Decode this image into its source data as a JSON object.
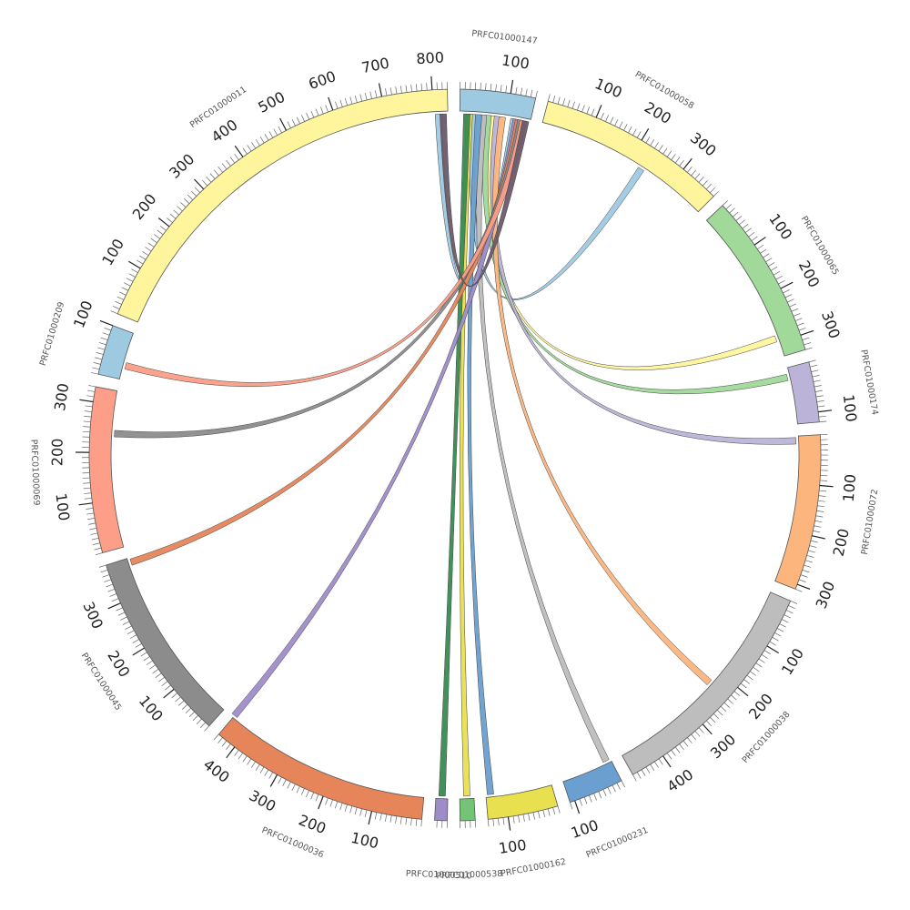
{
  "diagram": {
    "type": "circos",
    "scale": {
      "max_length": 830,
      "major_tick_step": 100,
      "minor_tick_step": 10
    },
    "segments": [
      {
        "id": "PRFC01000147",
        "label": "PRFC01000147",
        "length": 150,
        "color": "#9ecae1"
      },
      {
        "id": "PRFC01000058",
        "label": "PRFC01000058",
        "length": 380,
        "color": "#fff59d"
      },
      {
        "id": "PRFC01000065",
        "label": "PRFC01000065",
        "length": 330,
        "color": "#a1d99b"
      },
      {
        "id": "PRFC01000174",
        "label": "PRFC01000174",
        "length": 120,
        "color": "#bcb4d8"
      },
      {
        "id": "PRFC01000072",
        "label": "PRFC01000072",
        "length": 310,
        "color": "#fdb57e"
      },
      {
        "id": "PRFC01000038",
        "label": "PRFC01000038",
        "length": 470,
        "color": "#bdbdbd"
      },
      {
        "id": "PRFC01000231",
        "label": "PRFC01000231",
        "length": 110,
        "color": "#6a9fd0"
      },
      {
        "id": "PRFC01000162",
        "label": "PRFC01000162",
        "length": 140,
        "color": "#e8e04f"
      },
      {
        "id": "PRFC01000538",
        "label": "PRFC01000538",
        "length": 30,
        "color": "#74c476"
      },
      {
        "id": "PRFC01000510",
        "label": "PRFC01000510",
        "length": 25,
        "color": "#9e8cc8"
      },
      {
        "id": "PRFC01000036",
        "label": "PRFC01000036",
        "length": 440,
        "color": "#e6855a"
      },
      {
        "id": "PRFC01000045",
        "label": "PRFC01000045",
        "length": 380,
        "color": "#8c8c8c"
      },
      {
        "id": "PRFC01000069",
        "label": "PRFC01000069",
        "length": 330,
        "color": "#fc9e88"
      },
      {
        "id": "PRFC01000209",
        "label": "PRFC01000209",
        "length": 100,
        "color": "#9ecae1"
      },
      {
        "id": "PRFC01000011",
        "label": "PRFC01000011",
        "length": 830,
        "color": "#fff59d"
      }
    ],
    "links": [
      {
        "source": "PRFC01000147",
        "source_pos": 115,
        "target": "PRFC01000011",
        "target_pos": 810,
        "color": "#9ecae1"
      },
      {
        "source": "PRFC01000147",
        "source_pos": 30,
        "target": "PRFC01000058",
        "target_pos": 230,
        "color": "#9ecae1"
      },
      {
        "source": "PRFC01000147",
        "source_pos": 70,
        "target": "PRFC01000065",
        "target_pos": 290,
        "color": "#fff59d"
      },
      {
        "source": "PRFC01000147",
        "source_pos": 60,
        "target": "PRFC01000174",
        "target_pos": 20,
        "color": "#a1d99b"
      },
      {
        "source": "PRFC01000147",
        "source_pos": 80,
        "target": "PRFC01000072",
        "target_pos": 10,
        "color": "#bcb4d8"
      },
      {
        "source": "PRFC01000147",
        "source_pos": 90,
        "target": "PRFC01000038",
        "target_pos": 230,
        "color": "#fdb57e"
      },
      {
        "source": "PRFC01000147",
        "source_pos": 50,
        "target": "PRFC01000231",
        "target_pos": 10,
        "color": "#bdbdbd"
      },
      {
        "source": "PRFC01000147",
        "source_pos": 40,
        "target": "PRFC01000162",
        "target_pos": 130,
        "color": "#6a9fd0"
      },
      {
        "source": "PRFC01000147",
        "source_pos": 20,
        "target": "PRFC01000538",
        "target_pos": 15,
        "color": "#e8e04f"
      },
      {
        "source": "PRFC01000147",
        "source_pos": 15,
        "target": "PRFC01000510",
        "target_pos": 12,
        "color": "#3a8a52"
      },
      {
        "source": "PRFC01000147",
        "source_pos": 120,
        "target": "PRFC01000036",
        "target_pos": 440,
        "color": "#9e8cc8"
      },
      {
        "source": "PRFC01000147",
        "source_pos": 125,
        "target": "PRFC01000045",
        "target_pos": 370,
        "color": "#e6855a"
      },
      {
        "source": "PRFC01000147",
        "source_pos": 130,
        "target": "PRFC01000069",
        "target_pos": 240,
        "color": "#8c8c8c"
      },
      {
        "source": "PRFC01000147",
        "source_pos": 135,
        "target": "PRFC01000209",
        "target_pos": 30,
        "color": "#fc9e88"
      },
      {
        "source": "PRFC01000147",
        "source_pos": 140,
        "target": "PRFC01000011",
        "target_pos": 820,
        "color": "#6a5a6a"
      }
    ]
  }
}
